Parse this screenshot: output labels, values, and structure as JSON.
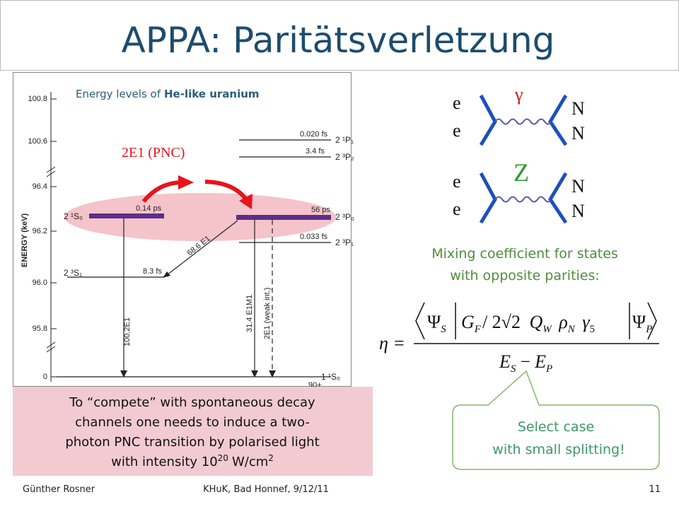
{
  "header": {
    "title": "APPA: Paritätsverletzung"
  },
  "figure": {
    "caption": {
      "text": "Energy levels of",
      "bold": "He-like uranium"
    },
    "axis_label": "ENERGY (keV)",
    "axis_ticks": [
      "100.8",
      "100.6",
      "96.4",
      "96.2",
      "96.0",
      "95.8",
      "0"
    ],
    "annotation": "2E1 (PNC)",
    "states": [
      "2 ¹P₁",
      "2 ³P₂",
      "2 ¹S₀",
      "2 ³P₀",
      "2 ³P₁",
      "2 ³S₁",
      "1 ¹S₀"
    ],
    "lifetimes": [
      "0.020 fs",
      "3.4 fs",
      "0.14 ps",
      "56 ps",
      "0.033 fs",
      "8.3 fs"
    ],
    "transitions": [
      "68.6 E1",
      "100.2E1",
      "31.4 E1M1",
      "2E1 (weak int.)"
    ],
    "ground_note": "90+"
  },
  "feynman": {
    "top": {
      "left": [
        "e",
        "e"
      ],
      "boson": "γ",
      "right": [
        "N",
        "N"
      ]
    },
    "bottom": {
      "left": [
        "e",
        "e"
      ],
      "boson": "Z",
      "right": [
        "N",
        "N"
      ]
    }
  },
  "mixing": {
    "lines": [
      "Mixing coefficient for states",
      "with opposite parities:"
    ]
  },
  "formula": {
    "lhs": "η =",
    "bra": "Ψ",
    "bra_sub": "S",
    "g": "G",
    "g_sub": "F",
    "g_rest": "/ 2√2",
    "q": "Q",
    "q_sub": "W",
    "rho": "ρ",
    "rho_sub": "N",
    "gamma": "γ",
    "gamma_sub": "5",
    "ket": "Ψ",
    "ket_sub": "P",
    "den_a": "E",
    "den_a_sub": "S",
    "minus": "−",
    "den_b": "E",
    "den_b_sub": "P"
  },
  "callout": {
    "lines": [
      "Select case",
      "with small splitting!"
    ]
  },
  "note": {
    "lines": [
      "To “compete” with spontaneous decay",
      "channels  one needs to induce a two-",
      "photon PNC transition by polarised light"
    ],
    "last": {
      "text": "with intensity 10",
      "exp": "20",
      "unit": "W/cm",
      "unit_exp": "2"
    }
  },
  "footer": {
    "author": "Günther Rosner",
    "event": "KHuK, Bad Honnef, 9/12/11",
    "page": "11"
  }
}
